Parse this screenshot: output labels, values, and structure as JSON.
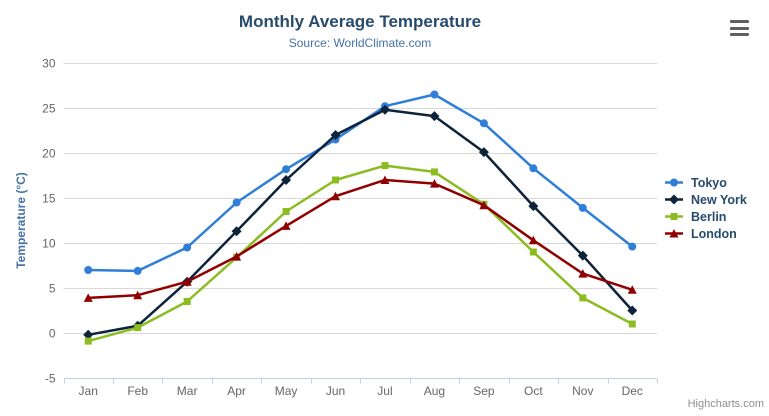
{
  "chart_data": {
    "type": "line",
    "title": "Monthly Average Temperature",
    "subtitle": "Source: WorldClimate.com",
    "xlabel": "",
    "ylabel": "Temperature (°C)",
    "ylim": [
      -5,
      30
    ],
    "y_tick_interval": 5,
    "grid": true,
    "legend_position": "right",
    "categories": [
      "Jan",
      "Feb",
      "Mar",
      "Apr",
      "May",
      "Jun",
      "Jul",
      "Aug",
      "Sep",
      "Oct",
      "Nov",
      "Dec"
    ],
    "series": [
      {
        "name": "Tokyo",
        "color": "#2f7ed8",
        "marker": "circle",
        "values": [
          7.0,
          6.9,
          9.5,
          14.5,
          18.2,
          21.5,
          25.2,
          26.5,
          23.3,
          18.3,
          13.9,
          9.6
        ]
      },
      {
        "name": "New York",
        "color": "#0d233a",
        "marker": "diamond",
        "values": [
          -0.2,
          0.8,
          5.7,
          11.3,
          17.0,
          22.0,
          24.8,
          24.1,
          20.1,
          14.1,
          8.6,
          2.5
        ]
      },
      {
        "name": "Berlin",
        "color": "#8bbc21",
        "marker": "square",
        "values": [
          -0.9,
          0.6,
          3.5,
          8.4,
          13.5,
          17.0,
          18.6,
          17.9,
          14.3,
          9.0,
          3.9,
          1.0
        ]
      },
      {
        "name": "London",
        "color": "#910000",
        "marker": "triangle",
        "values": [
          3.9,
          4.2,
          5.7,
          8.5,
          11.9,
          15.2,
          17.0,
          16.6,
          14.2,
          10.3,
          6.6,
          4.8
        ]
      }
    ]
  },
  "credit": "Highcharts.com",
  "colors": {
    "grid": "#d8d8d8",
    "axis_line": "#c0d0e0",
    "axis_label": "#666666",
    "axis_title": "#4572a7",
    "title": "#274b6d",
    "subtitle": "#4572a7",
    "legend_text": "#274b6d",
    "credit": "#8f8f8f",
    "menu_icon": "#606060"
  }
}
